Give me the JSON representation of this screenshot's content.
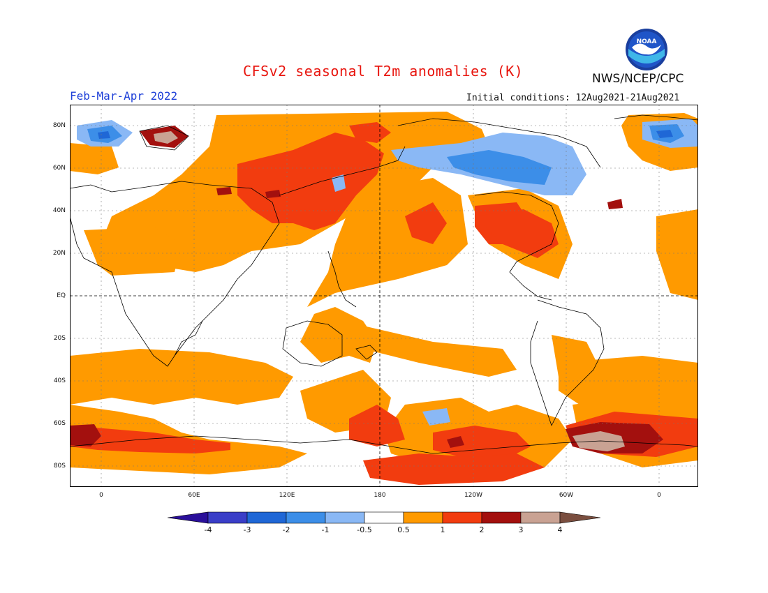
{
  "header": {
    "title": "CFSv2 seasonal T2m anomalies (K)",
    "agency": "NWS/NCEP/CPC",
    "period": "Feb-Mar-Apr 2022",
    "initial_conditions": "Initial conditions: 12Aug2021-21Aug2021",
    "logo_text": "NOAA"
  },
  "axes": {
    "lat_labels": [
      "80N",
      "60N",
      "40N",
      "20N",
      "EQ",
      "20S",
      "40S",
      "60S",
      "80S"
    ],
    "lon_labels": [
      "0",
      "60E",
      "120E",
      "180",
      "120W",
      "60W",
      "0"
    ]
  },
  "legend": {
    "tick_labels": [
      "-4",
      "-3",
      "-2",
      "-1",
      "-0.5",
      "0.5",
      "1",
      "2",
      "3",
      "4"
    ],
    "colors": [
      "#2a0f9a",
      "#3a3ec8",
      "#1f67d6",
      "#3c8ee8",
      "#8ab8f5",
      "#ffffff",
      "#ff9a00",
      "#f23c0f",
      "#a3100e",
      "#c9a293",
      "#7a4e3f"
    ]
  },
  "colors": {
    "title": "#e8150e",
    "period": "#1d3fd8",
    "warm1": "#ff9a00",
    "warm2": "#f23c0f",
    "warm3": "#a3100e",
    "warm4": "#c9a293",
    "cool1": "#8ab8f5",
    "cool2": "#3c8ee8",
    "cool3": "#1f67d6"
  }
}
